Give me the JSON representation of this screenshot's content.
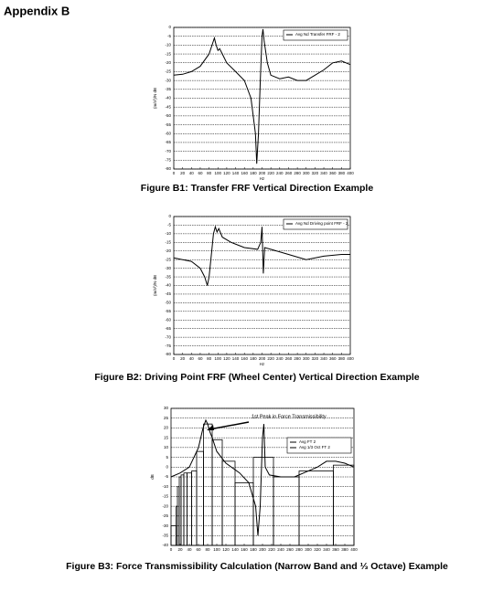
{
  "title": "Appendix B",
  "chart_data": [
    {
      "type": "line",
      "caption": "Figure B1: Transfer FRF Vertical Direction Example",
      "xlabel": "Hz",
      "ylabel": "(m/s²)/N dB",
      "xlim": [
        0,
        400
      ],
      "xticks": [
        0,
        20,
        40,
        60,
        80,
        100,
        120,
        140,
        160,
        180,
        200,
        220,
        240,
        260,
        280,
        300,
        320,
        340,
        360,
        380,
        400
      ],
      "ylim": [
        -80,
        0
      ],
      "yticks": [
        0,
        -5,
        -10,
        -15,
        -20,
        -25,
        -30,
        -35,
        -40,
        -45,
        -50,
        -55,
        -60,
        -65,
        -70,
        -75,
        -80
      ],
      "grid": true,
      "legend": "upper right",
      "series": [
        {
          "name": "Avg Nd Transfer FRF - 2",
          "color": "#000000",
          "x": [
            0,
            20,
            40,
            60,
            80,
            88,
            92,
            96,
            100,
            104,
            110,
            120,
            140,
            160,
            175,
            185,
            188,
            192,
            196,
            200,
            202,
            205,
            212,
            220,
            240,
            260,
            280,
            300,
            320,
            340,
            360,
            380,
            400
          ],
          "values": [
            -27,
            -26.5,
            -25,
            -22,
            -15,
            -9,
            -6,
            -10,
            -13,
            -12,
            -15,
            -20,
            -25,
            -30,
            -40,
            -60,
            -77,
            -60,
            -30,
            -5,
            -1,
            -8,
            -20,
            -27,
            -29,
            -28,
            -30,
            -30,
            -27,
            -24,
            -20,
            -19,
            -21
          ]
        }
      ]
    },
    {
      "type": "line",
      "caption": "Figure B2: Driving Point FRF (Wheel Center) Vertical Direction Example",
      "xlabel": "Hz",
      "ylabel": "(m/s²)/N dB",
      "xlim": [
        0,
        400
      ],
      "xticks": [
        0,
        20,
        40,
        60,
        80,
        100,
        120,
        140,
        160,
        180,
        200,
        220,
        240,
        260,
        280,
        300,
        320,
        340,
        360,
        380,
        400
      ],
      "ylim": [
        -80,
        0
      ],
      "yticks": [
        0,
        -5,
        -10,
        -15,
        -20,
        -25,
        -30,
        -35,
        -40,
        -45,
        -50,
        -55,
        -60,
        -65,
        -70,
        -75,
        -80
      ],
      "grid": true,
      "legend": "upper right",
      "series": [
        {
          "name": "Avg Nd Driving point FRF - 2",
          "color": "#000000",
          "x": [
            0,
            20,
            40,
            60,
            70,
            76,
            80,
            86,
            90,
            94,
            98,
            102,
            110,
            130,
            160,
            190,
            197,
            200,
            203,
            206,
            220,
            260,
            300,
            340,
            380,
            400
          ],
          "values": [
            -24,
            -25,
            -26,
            -30,
            -35,
            -40,
            -35,
            -20,
            -10,
            -6,
            -9,
            -7,
            -12,
            -15,
            -18,
            -19,
            -15,
            -6,
            -33,
            -18,
            -19,
            -22,
            -25,
            -23,
            -22,
            -22
          ]
        }
      ]
    },
    {
      "type": "line",
      "caption": "Figure B3: Force Transmissibility Calculation (Narrow Band and ⅓ Octave) Example",
      "ylabel": "dB",
      "annotation": "1st Peak in Force Transmissibility",
      "xlim": [
        0,
        400
      ],
      "xticks": [
        0,
        20,
        40,
        60,
        80,
        100,
        120,
        140,
        160,
        180,
        200,
        220,
        240,
        260,
        280,
        300,
        320,
        340,
        360,
        380,
        400
      ],
      "ylim": [
        -40,
        30
      ],
      "yticks": [
        30,
        25,
        20,
        15,
        10,
        5,
        0,
        -5,
        -10,
        -15,
        -20,
        -25,
        -30,
        -35,
        -40
      ],
      "grid": true,
      "legend": "upper right",
      "series": [
        {
          "name": "Avg FT 2",
          "color": "#000000",
          "x": [
            0,
            20,
            40,
            60,
            70,
            76,
            80,
            85,
            90,
            100,
            120,
            150,
            170,
            185,
            190,
            195,
            200,
            203,
            206,
            215,
            240,
            270,
            300,
            320,
            340,
            360,
            380,
            400
          ],
          "values": [
            -5,
            -3,
            0,
            10,
            20,
            24,
            22,
            18,
            15,
            8,
            2,
            -3,
            -8,
            -20,
            -35,
            -20,
            15,
            22,
            0,
            -4,
            -5,
            -5,
            -2,
            0,
            3,
            3,
            2,
            0
          ]
        }
      ],
      "bars": {
        "name": "Avg 1/3 Oct FT 2",
        "color": "#000000",
        "bins": [
          0,
          11,
          14,
          18,
          22,
          28,
          35,
          45,
          56,
          71,
          90,
          112,
          140,
          180,
          224,
          280,
          355,
          400
        ],
        "values": [
          -30,
          -20,
          -10,
          -5,
          -4,
          -3,
          -3,
          -2,
          8,
          22,
          14,
          3,
          -8,
          5,
          -5,
          -2,
          1
        ]
      }
    }
  ]
}
